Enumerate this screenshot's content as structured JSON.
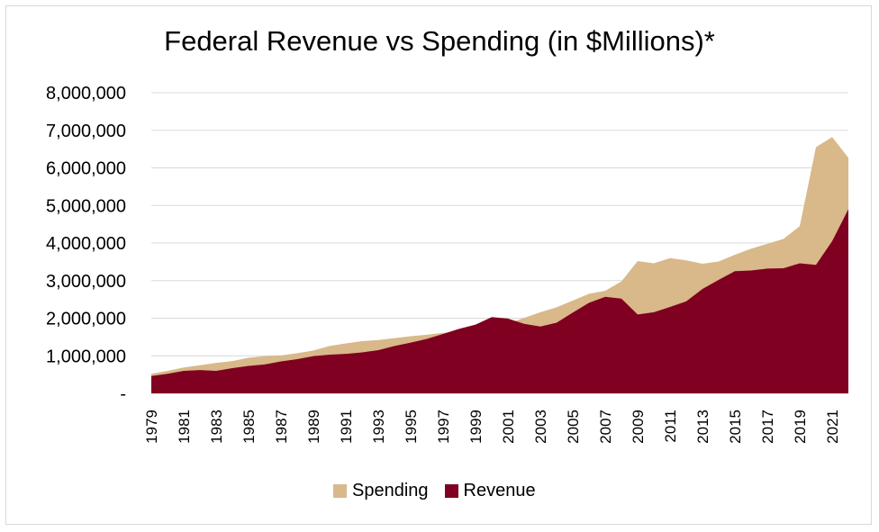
{
  "chart_data": {
    "type": "area",
    "title": "Federal Revenue vs Spending (in $Millions)*",
    "xlabel": "",
    "ylabel": "",
    "ylim": [
      0,
      8000000
    ],
    "y_ticks": [
      0,
      1000000,
      2000000,
      3000000,
      4000000,
      5000000,
      6000000,
      7000000,
      8000000
    ],
    "y_tick_labels": [
      "-",
      "1,000,000",
      "2,000,000",
      "3,000,000",
      "4,000,000",
      "5,000,000",
      "6,000,000",
      "7,000,000",
      "8,000,000"
    ],
    "x": [
      1979,
      1980,
      1981,
      1982,
      1983,
      1984,
      1985,
      1986,
      1987,
      1988,
      1989,
      1990,
      1991,
      1992,
      1993,
      1994,
      1995,
      1996,
      1997,
      1998,
      1999,
      2000,
      2001,
      2002,
      2003,
      2004,
      2005,
      2006,
      2007,
      2008,
      2009,
      2010,
      2011,
      2012,
      2013,
      2014,
      2015,
      2016,
      2017,
      2018,
      2019,
      2020,
      2021,
      2022
    ],
    "x_tick_labels": [
      "1979",
      "1981",
      "1983",
      "1985",
      "1987",
      "1989",
      "1991",
      "1993",
      "1995",
      "1997",
      "1999",
      "2001",
      "2003",
      "2005",
      "2007",
      "2009",
      "2011",
      "2013",
      "2015",
      "2017",
      "2019",
      "2021"
    ],
    "grid": true,
    "legend_position": "bottom",
    "series": [
      {
        "name": "Spending",
        "color": "#d9b88a",
        "values": [
          520000,
          600000,
          690000,
          750000,
          810000,
          860000,
          950000,
          990000,
          1010000,
          1070000,
          1140000,
          1260000,
          1330000,
          1390000,
          1420000,
          1470000,
          1520000,
          1560000,
          1610000,
          1650000,
          1700000,
          1790000,
          1860000,
          2010000,
          2160000,
          2290000,
          2470000,
          2650000,
          2730000,
          2980000,
          3520000,
          3460000,
          3600000,
          3540000,
          3450000,
          3510000,
          3690000,
          3850000,
          3980000,
          4110000,
          4450000,
          6550000,
          6820000,
          6270000
        ]
      },
      {
        "name": "Revenue",
        "color": "#7f0020",
        "values": [
          460000,
          520000,
          600000,
          620000,
          600000,
          670000,
          730000,
          770000,
          850000,
          910000,
          990000,
          1030000,
          1050000,
          1090000,
          1150000,
          1260000,
          1350000,
          1450000,
          1580000,
          1720000,
          1830000,
          2030000,
          1990000,
          1850000,
          1780000,
          1880000,
          2150000,
          2410000,
          2570000,
          2520000,
          2100000,
          2160000,
          2300000,
          2450000,
          2780000,
          3020000,
          3250000,
          3270000,
          3320000,
          3330000,
          3460000,
          3420000,
          4050000,
          4900000
        ]
      }
    ]
  }
}
